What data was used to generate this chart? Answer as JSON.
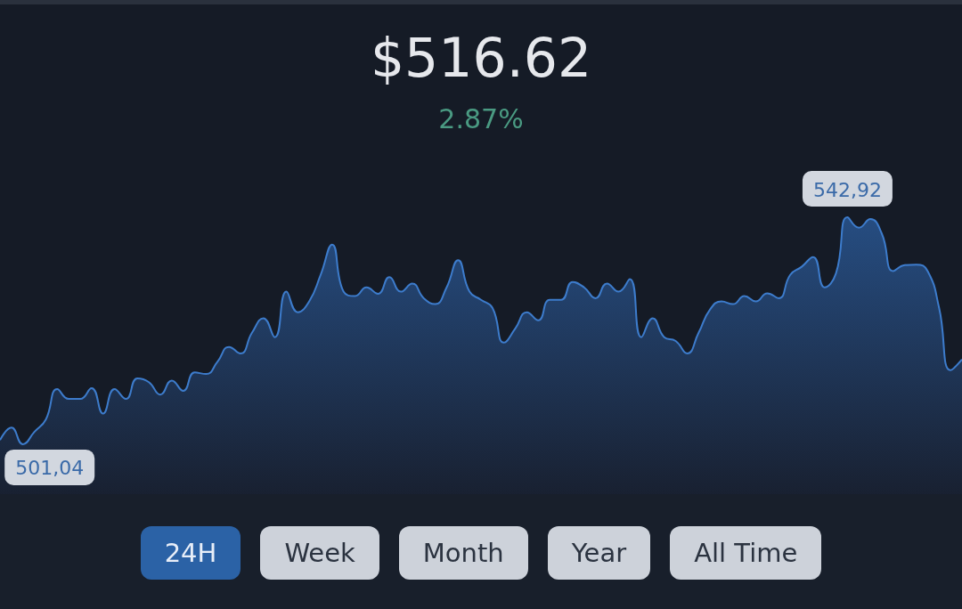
{
  "chart_data": {
    "type": "area",
    "title": "$516.62",
    "subtitle": "2.87%",
    "categories": [
      null,
      null,
      null,
      null,
      null,
      null,
      null,
      null,
      null,
      null,
      null,
      null,
      null,
      null,
      null,
      null,
      null,
      null,
      null,
      null,
      null,
      null,
      null,
      null,
      null,
      null,
      null,
      null,
      null,
      null,
      null,
      null,
      null,
      null,
      null,
      null,
      null,
      null,
      null,
      null,
      null,
      null,
      null,
      null,
      null,
      null,
      null,
      null,
      null,
      null,
      null,
      null,
      null,
      null,
      null,
      null,
      null,
      null,
      null,
      null,
      null,
      null,
      null,
      null,
      null,
      null,
      null,
      null,
      null,
      null,
      null,
      null,
      null,
      null,
      null,
      null,
      null,
      null,
      null,
      null,
      null,
      null,
      null,
      null,
      null
    ],
    "values": [
      501.8,
      504.1,
      501.04,
      503.3,
      505.6,
      511.2,
      509.4,
      509.4,
      511.4,
      506.7,
      511.2,
      509.4,
      513.2,
      512.5,
      510.2,
      512.8,
      510.9,
      514.3,
      514.0,
      516.3,
      519.0,
      517.8,
      521.6,
      524.3,
      520.8,
      529.2,
      525.4,
      527.4,
      532.3,
      537.9,
      529.2,
      528.4,
      530.0,
      528.8,
      531.9,
      529.2,
      530.7,
      528.0,
      526.9,
      530.0,
      535.0,
      529.2,
      527.7,
      526.2,
      519.8,
      522.4,
      525.4,
      523.9,
      527.7,
      527.7,
      531.0,
      530.0,
      528.0,
      530.7,
      529.2,
      531.5,
      520.8,
      524.3,
      520.8,
      520.1,
      517.8,
      521.6,
      525.9,
      527.4,
      526.9,
      528.4,
      527.4,
      528.9,
      528.0,
      532.3,
      533.8,
      535.6,
      530.0,
      532.6,
      542.92,
      541.0,
      542.6,
      539.9,
      533.0,
      534.1,
      534.2,
      533.0,
      526.2,
      514.7,
      516.7
    ],
    "value_labels": [
      null,
      null,
      "501,04",
      null,
      null,
      null,
      null,
      null,
      null,
      null,
      null,
      null,
      null,
      null,
      null,
      null,
      null,
      null,
      null,
      null,
      null,
      null,
      null,
      null,
      null,
      null,
      null,
      null,
      null,
      null,
      null,
      null,
      null,
      null,
      null,
      null,
      null,
      null,
      null,
      null,
      null,
      null,
      null,
      null,
      null,
      null,
      null,
      null,
      null,
      null,
      null,
      null,
      null,
      null,
      null,
      null,
      null,
      null,
      null,
      null,
      null,
      null,
      null,
      null,
      null,
      null,
      null,
      null,
      null,
      null,
      null,
      null,
      null,
      null,
      "542,92",
      null,
      null,
      null,
      null,
      null,
      null,
      null,
      null,
      null,
      null
    ],
    "color": "#3d7ccc",
    "annotations": [
      "24H",
      "Week",
      "Month",
      "Year",
      "All Time"
    ]
  }
}
